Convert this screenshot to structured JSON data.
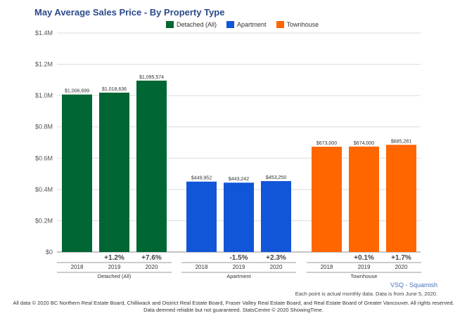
{
  "chart_data": {
    "type": "bar",
    "title": "May Average Sales Price - By Property Type",
    "ylim": [
      0,
      1400000
    ],
    "yticks": [
      0,
      200000,
      400000,
      600000,
      800000,
      1000000,
      1200000,
      1400000
    ],
    "ytick_labels": [
      "$0",
      "$0.2M",
      "$0.4M",
      "$0.6M",
      "$0.8M",
      "$1.0M",
      "$1.2M",
      "$1.4M"
    ],
    "legend_position": "top-center",
    "grid": true,
    "groups": [
      {
        "name": "Detached (All)",
        "color": "#006633",
        "years": [
          "2018",
          "2019",
          "2020"
        ],
        "values": [
          1006699,
          1018636,
          1095574
        ],
        "value_labels": [
          "$1,006,699",
          "$1,018,636",
          "$1,095,574"
        ],
        "changes": [
          "",
          "+1.2%",
          "+7.6%"
        ]
      },
      {
        "name": "Apartment",
        "color": "#1155d8",
        "years": [
          "2018",
          "2019",
          "2020"
        ],
        "values": [
          449952,
          443242,
          453250
        ],
        "value_labels": [
          "$449,952",
          "$443,242",
          "$453,250"
        ],
        "changes": [
          "",
          "-1.5%",
          "+2.3%"
        ]
      },
      {
        "name": "Townhouse",
        "color": "#ff6600",
        "years": [
          "2018",
          "2019",
          "2020"
        ],
        "values": [
          673000,
          674000,
          685281
        ],
        "value_labels": [
          "$673,000",
          "$674,000",
          "$685,281"
        ],
        "changes": [
          "",
          "+0.1%",
          "+1.7%"
        ]
      }
    ]
  },
  "legend": [
    {
      "label": "Detached (All)",
      "color": "#006633"
    },
    {
      "label": "Apartment",
      "color": "#1155d8"
    },
    {
      "label": "Townhouse",
      "color": "#ff6600"
    }
  ],
  "source_label": "VSQ - Squamish",
  "note": "Each point is actual monthly data. Data is from June 5, 2020.",
  "footer": {
    "line1": "All data © 2020 BC Northern Real Estate Board, Chilliwack and District Real Estate Board, Fraser Valley Real Estate Board, and Real Estate Board of Greater Vancouver. All rights reserved.",
    "line2": "Data deemed reliable but not guaranteed. StatsCentre © 2020 ShowingTime."
  }
}
